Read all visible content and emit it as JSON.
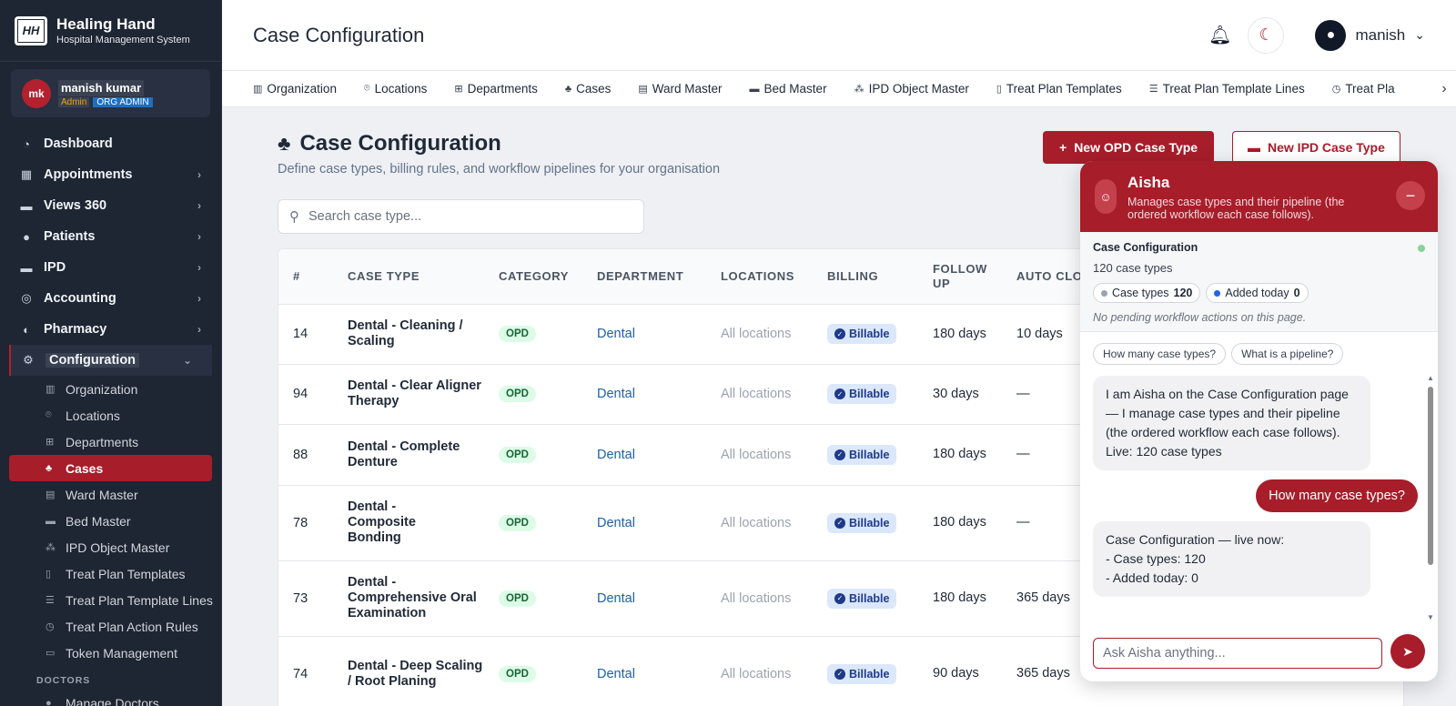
{
  "brand": {
    "logo": "HH",
    "name": "Healing Hand",
    "subtitle": "Hospital Management System"
  },
  "user": {
    "initials": "mk",
    "name": "manish kumar",
    "role": "Admin",
    "org_role": "ORG ADMIN"
  },
  "sidebar": {
    "items": [
      {
        "label": "Dashboard",
        "icon": "gauge-icon"
      },
      {
        "label": "Appointments",
        "icon": "calendar-icon"
      },
      {
        "label": "Views 360",
        "icon": "bed-icon"
      },
      {
        "label": "Patients",
        "icon": "user-icon"
      },
      {
        "label": "IPD",
        "icon": "bed-icon"
      },
      {
        "label": "Accounting",
        "icon": "coins-icon"
      },
      {
        "label": "Pharmacy",
        "icon": "pills-icon"
      },
      {
        "label": "Configuration",
        "icon": "gear-icon"
      }
    ],
    "config_sub": [
      {
        "label": "Organization"
      },
      {
        "label": "Locations"
      },
      {
        "label": "Departments"
      },
      {
        "label": "Cases"
      },
      {
        "label": "Ward Master"
      },
      {
        "label": "Bed Master"
      },
      {
        "label": "IPD Object Master"
      },
      {
        "label": "Treat Plan Templates"
      },
      {
        "label": "Treat Plan Template Lines"
      },
      {
        "label": "Treat Plan Action Rules"
      },
      {
        "label": "Token Management"
      }
    ],
    "section_doctors": "DOCTORS",
    "doctors_item": "Manage Doctors"
  },
  "header": {
    "title": "Case Configuration",
    "username": "manish"
  },
  "subnav": [
    "Organization",
    "Locations",
    "Departments",
    "Cases",
    "Ward Master",
    "Bed Master",
    "IPD Object Master",
    "Treat Plan Templates",
    "Treat Plan Template Lines",
    "Treat Pla"
  ],
  "main": {
    "title": "Case Configuration",
    "description": "Define case types, billing rules, and workflow pipelines for your organisation",
    "new_opd": "New OPD Case Type",
    "new_ipd": "New IPD Case Type",
    "search_placeholder": "Search case type..."
  },
  "table": {
    "headers": [
      "#",
      "CASE TYPE",
      "CATEGORY",
      "DEPARTMENT",
      "LOCATIONS",
      "BILLING",
      "FOLLOW UP",
      "AUTO CLOSE"
    ],
    "rows": [
      {
        "id": "14",
        "case": "Dental - Cleaning / Scaling",
        "category": "OPD",
        "dept": "Dental",
        "locations": "All locations",
        "billing": "Billable",
        "follow": "180 days",
        "auto": "10 days"
      },
      {
        "id": "94",
        "case": "Dental - Clear Aligner Therapy",
        "category": "OPD",
        "dept": "Dental",
        "locations": "All locations",
        "billing": "Billable",
        "follow": "30 days",
        "auto": "—"
      },
      {
        "id": "88",
        "case": "Dental - Complete Denture",
        "category": "OPD",
        "dept": "Dental",
        "locations": "All locations",
        "billing": "Billable",
        "follow": "180 days",
        "auto": "—"
      },
      {
        "id": "78",
        "case": "Dental - Composite Bonding",
        "category": "OPD",
        "dept": "Dental",
        "locations": "All locations",
        "billing": "Billable",
        "follow": "180 days",
        "auto": "—"
      },
      {
        "id": "73",
        "case": "Dental - Comprehensive Oral Examination",
        "category": "OPD",
        "dept": "Dental",
        "locations": "All locations",
        "billing": "Billable",
        "follow": "180 days",
        "auto": "365 days"
      },
      {
        "id": "74",
        "case": "Dental - Deep Scaling / Root Planing",
        "category": "OPD",
        "dept": "Dental",
        "locations": "All locations",
        "billing": "Billable",
        "follow": "90 days",
        "auto": "365 days"
      }
    ]
  },
  "chat": {
    "name": "Aisha",
    "description": "Manages case types and their pipeline (the ordered workflow each case follows).",
    "context_title": "Case Configuration",
    "context_count": "120 case types",
    "pill1_label": "Case types",
    "pill1_value": "120",
    "pill2_label": "Added today",
    "pill2_value": "0",
    "note": "No pending workflow actions on this page.",
    "suggestions": [
      "How many case types?",
      "What is a pipeline?"
    ],
    "messages": [
      {
        "from": "bot",
        "text": "I am Aisha on the Case Configuration page — I manage case types and their pipeline (the ordered workflow each case follows).\nLive: 120 case types"
      },
      {
        "from": "user",
        "text": "How many case types?"
      },
      {
        "from": "bot",
        "text": "Case Configuration — live now:\n- Case types: 120\n- Added today: 0"
      }
    ],
    "input_placeholder": "Ask Aisha anything..."
  },
  "colors": {
    "accent": "#a71d2a",
    "sidebar_bg": "#1e2533"
  }
}
